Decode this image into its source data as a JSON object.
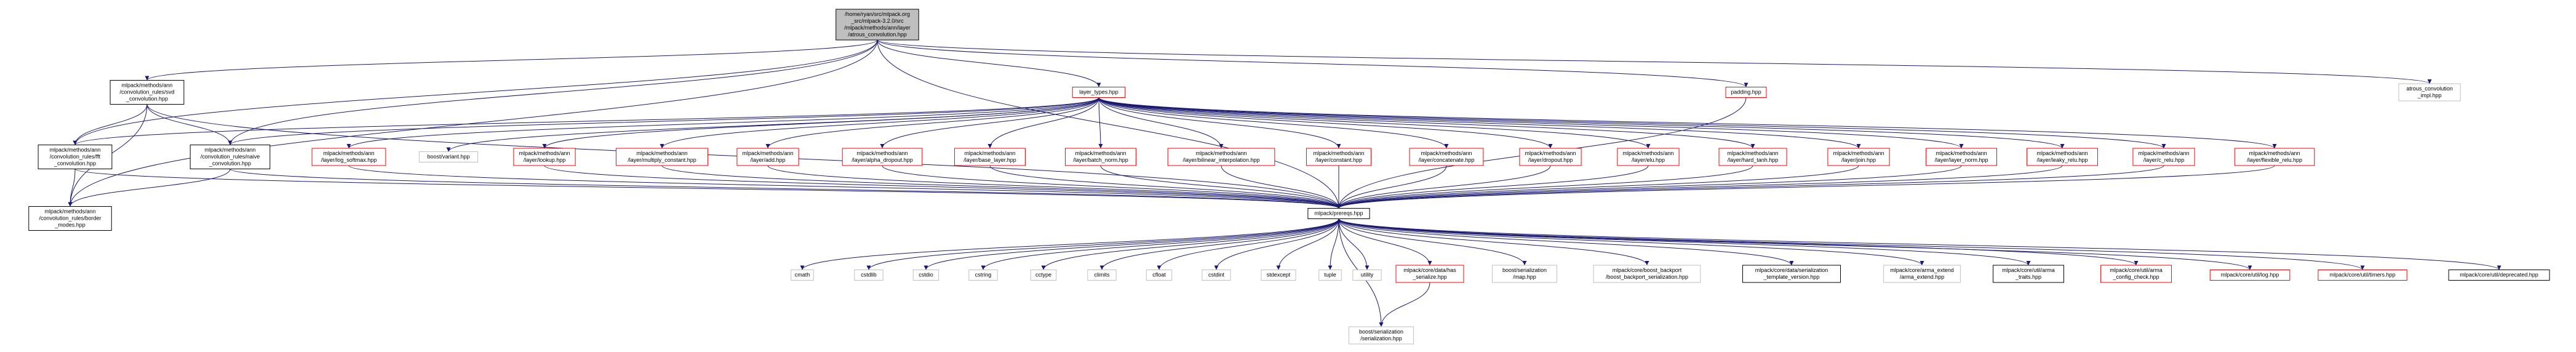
{
  "nodes": [
    {
      "lines": [
        "/home/ryan/src/mlpack.org",
        "_src/mlpack-3.2.0/src",
        "/mlpack/methods/ann/layer",
        "/atrous_convolution.hpp"
      ]
    },
    {
      "lines": [
        "mlpack/methods/ann",
        "/convolution_rules/svd",
        "_convolution.hpp"
      ]
    },
    {
      "lines": [
        "layer_types.hpp"
      ]
    },
    {
      "lines": [
        "padding.hpp"
      ]
    },
    {
      "lines": [
        "atrous_convolution",
        "_impl.hpp"
      ]
    },
    {
      "lines": [
        "mlpack/methods/ann",
        "/convolution_rules/fft",
        "_convolution.hpp"
      ]
    },
    {
      "lines": [
        "mlpack/methods/ann",
        "/convolution_rules/naive",
        "_convolution.hpp"
      ]
    },
    {
      "lines": [
        "mlpack/methods/ann",
        "/layer/log_softmax.hpp"
      ]
    },
    {
      "lines": [
        "boost/variant.hpp"
      ]
    },
    {
      "lines": [
        "mlpack/methods/ann",
        "/layer/lookup.hpp"
      ]
    },
    {
      "lines": [
        "mlpack/methods/ann",
        "/layer/multiply_constant.hpp"
      ]
    },
    {
      "lines": [
        "mlpack/methods/ann",
        "/layer/add.hpp"
      ]
    },
    {
      "lines": [
        "mlpack/methods/ann",
        "/layer/alpha_dropout.hpp"
      ]
    },
    {
      "lines": [
        "mlpack/methods/ann",
        "/layer/base_layer.hpp"
      ]
    },
    {
      "lines": [
        "mlpack/methods/ann",
        "/layer/batch_norm.hpp"
      ]
    },
    {
      "lines": [
        "mlpack/methods/ann",
        "/layer/bilinear_interpolation.hpp"
      ]
    },
    {
      "lines": [
        "mlpack/methods/ann",
        "/layer/constant.hpp"
      ]
    },
    {
      "lines": [
        "mlpack/methods/ann",
        "/layer/concatenate.hpp"
      ]
    },
    {
      "lines": [
        "mlpack/methods/ann",
        "/layer/dropout.hpp"
      ]
    },
    {
      "lines": [
        "mlpack/methods/ann",
        "/layer/elu.hpp"
      ]
    },
    {
      "lines": [
        "mlpack/methods/ann",
        "/layer/hard_tanh.hpp"
      ]
    },
    {
      "lines": [
        "mlpack/methods/ann",
        "/layer/join.hpp"
      ]
    },
    {
      "lines": [
        "mlpack/methods/ann",
        "/layer/layer_norm.hpp"
      ]
    },
    {
      "lines": [
        "mlpack/methods/ann",
        "/layer/leaky_relu.hpp"
      ]
    },
    {
      "lines": [
        "mlpack/methods/ann",
        "/layer/c_relu.hpp"
      ]
    },
    {
      "lines": [
        "mlpack/methods/ann",
        "/layer/flexible_relu.hpp"
      ]
    },
    {
      "lines": [
        "mlpack/methods/ann",
        "/convolution_rules/border",
        "_modes.hpp"
      ]
    },
    {
      "lines": [
        "mlpack/prereqs.hpp"
      ]
    },
    {
      "lines": [
        "cmath"
      ]
    },
    {
      "lines": [
        "cstdlib"
      ]
    },
    {
      "lines": [
        "cstdio"
      ]
    },
    {
      "lines": [
        "cstring"
      ]
    },
    {
      "lines": [
        "cctype"
      ]
    },
    {
      "lines": [
        "climits"
      ]
    },
    {
      "lines": [
        "cfloat"
      ]
    },
    {
      "lines": [
        "cstdint"
      ]
    },
    {
      "lines": [
        "stdexcept"
      ]
    },
    {
      "lines": [
        "tuple"
      ]
    },
    {
      "lines": [
        "utility"
      ]
    },
    {
      "lines": [
        "mlpack/core/data/has",
        "_serialize.hpp"
      ]
    },
    {
      "lines": [
        "boost/serialization",
        "/map.hpp"
      ]
    },
    {
      "lines": [
        "mlpack/core/boost_backport",
        "/boost_backport_serialization.hpp"
      ]
    },
    {
      "lines": [
        "mlpack/core/data/serialization",
        "_template_version.hpp"
      ]
    },
    {
      "lines": [
        "mlpack/core/arma_extend",
        "/arma_extend.hpp"
      ]
    },
    {
      "lines": [
        "mlpack/core/util/arma",
        "_traits.hpp"
      ]
    },
    {
      "lines": [
        "mlpack/core/util/arma",
        "_config_check.hpp"
      ]
    },
    {
      "lines": [
        "mlpack/core/util/log.hpp"
      ]
    },
    {
      "lines": [
        "mlpack/core/util/timers.hpp"
      ]
    },
    {
      "lines": [
        "mlpack/core/util/deprecated.hpp"
      ]
    },
    {
      "lines": [
        "boost/serialization",
        "/serialization.hpp"
      ]
    }
  ]
}
